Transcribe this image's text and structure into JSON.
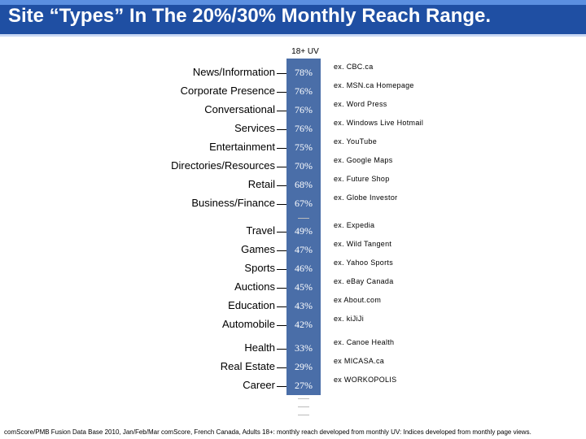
{
  "title": "Site “Types” In The 20%/30% Monthly Reach Range.",
  "colors": {
    "title_bg": "#1f4fa3",
    "bar": "#4a6ea8",
    "value_text": "#ffffff"
  },
  "chart_data": {
    "type": "bar",
    "series_header": "18+ UV",
    "categories": [
      "News/Information",
      "Corporate Presence",
      "Conversational",
      "Services",
      "Entertainment",
      "Directories/Resources",
      "Retail",
      "Business/Finance",
      "Travel",
      "Games",
      "Sports",
      "Auctions",
      "Education",
      "Automobile",
      "Health",
      "Real Estate",
      "Career"
    ],
    "values": [
      78,
      76,
      76,
      76,
      75,
      70,
      68,
      67,
      49,
      47,
      46,
      45,
      43,
      42,
      33,
      29,
      27
    ],
    "value_labels": [
      "78%",
      "76%",
      "76%",
      "76%",
      "75%",
      "70%",
      "68%",
      "67%",
      "49%",
      "47%",
      "46%",
      "45%",
      "43%",
      "42%",
      "33%",
      "29%",
      "27%"
    ],
    "examples": [
      "ex. CBC.ca",
      "ex. MSN.ca Homepage",
      "ex. Word Press",
      "ex. Windows Live Hotmail",
      "ex. YouTube",
      "ex. Google Maps",
      "ex. Future Shop",
      "ex. Globe Investor",
      "ex. Expedia",
      "ex. Wild Tangent",
      "ex. Yahoo Sports",
      "ex. eBay Canada",
      "ex About.com",
      "ex. kiJiJi",
      "ex. Canoe Health",
      "ex MICASA.ca",
      "ex WORKOPOLIS"
    ]
  },
  "footer": "comScore/PMB Fusion Data Base 2010, Jan/Feb/Mar comScore, French Canada, Adults 18+: monthly reach developed from monthly UV: Indices developed from monthly page views."
}
